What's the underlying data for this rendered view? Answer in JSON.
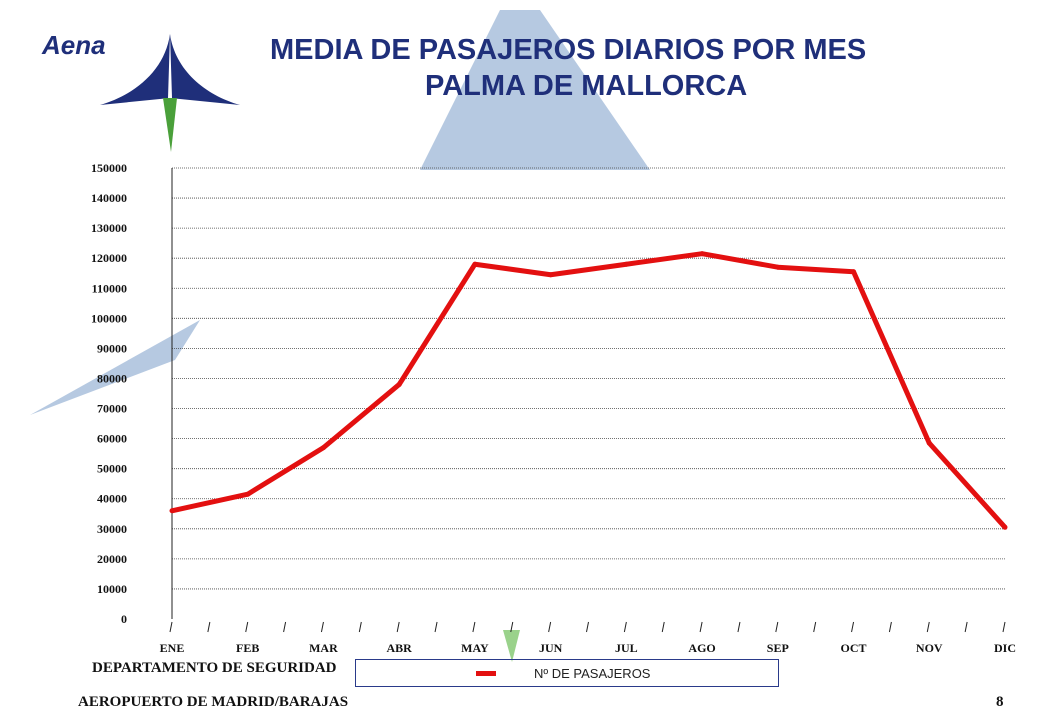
{
  "header": {
    "brand": "Aena",
    "title_line1": "MEDIA DE PASAJEROS DIARIOS POR MES",
    "title_line2": "PALMA DE MALLORCA"
  },
  "footer": {
    "department": "DEPARTAMENTO DE SEGURIDAD",
    "airport": "AEROPUERTO DE MADRID/BARAJAS",
    "page_number": "8"
  },
  "legend": {
    "label": "Nº DE PASAJEROS"
  },
  "colors": {
    "series": "#e31010",
    "title": "#1f2f7a",
    "logo_blue": "#1f2f7a",
    "logo_green": "#4aa03a",
    "background_shape": "#a9c0dc"
  },
  "chart_data": {
    "type": "line",
    "title": "MEDIA DE PASAJEROS DIARIOS POR MES",
    "subtitle": "PALMA DE MALLORCA",
    "categories": [
      "ENE",
      "FEB",
      "MAR",
      "ABR",
      "MAY",
      "JUN",
      "JUL",
      "AGO",
      "SEP",
      "OCT",
      "NOV",
      "DIC"
    ],
    "series": [
      {
        "name": "Nº DE PASAJEROS",
        "values": [
          36000,
          41500,
          57000,
          78000,
          118000,
          114500,
          118000,
          121500,
          117000,
          115500,
          58500,
          30500
        ]
      }
    ],
    "ylim": [
      0,
      150000
    ],
    "yticks": [
      0,
      10000,
      20000,
      30000,
      40000,
      50000,
      60000,
      70000,
      80000,
      90000,
      100000,
      110000,
      120000,
      130000,
      140000,
      150000
    ],
    "grid": true,
    "legend_position": "bottom"
  }
}
